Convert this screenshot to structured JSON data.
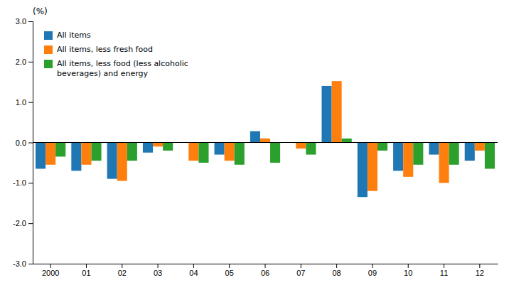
{
  "chart_data": {
    "type": "bar",
    "ylabel": "(%)",
    "categories": [
      "2000",
      "01",
      "02",
      "03",
      "04",
      "05",
      "06",
      "07",
      "08",
      "09",
      "10",
      "11",
      "12"
    ],
    "series": [
      {
        "name": "All items",
        "values": [
          -0.65,
          -0.7,
          -0.9,
          -0.25,
          0.0,
          -0.3,
          0.28,
          0.0,
          1.4,
          -1.35,
          -0.7,
          -0.3,
          -0.45
        ]
      },
      {
        "name": "All items, less fresh food",
        "values": [
          -0.55,
          -0.55,
          -0.95,
          -0.1,
          -0.45,
          -0.45,
          0.1,
          -0.15,
          1.52,
          -1.2,
          -0.85,
          -1.0,
          -0.2
        ]
      },
      {
        "name": "All items, less food (less alcoholic\nbeverages) and energy",
        "values": [
          -0.35,
          -0.45,
          -0.45,
          -0.2,
          -0.5,
          -0.55,
          -0.5,
          -0.3,
          0.1,
          -0.2,
          -0.55,
          -0.55,
          -0.65
        ]
      }
    ],
    "ylim": [
      -3.0,
      3.0
    ],
    "yticks": [
      {
        "value": -3.0,
        "label": "-3.0"
      },
      {
        "value": -2.0,
        "label": "-2.0"
      },
      {
        "value": -1.0,
        "label": "-1.0"
      },
      {
        "value": 0.0,
        "label": "0.0"
      },
      {
        "value": 1.0,
        "label": "1.0"
      },
      {
        "value": 2.0,
        "label": "2.0"
      },
      {
        "value": 3.0,
        "label": "3.0"
      }
    ],
    "grid": false,
    "legend": "upper left"
  }
}
